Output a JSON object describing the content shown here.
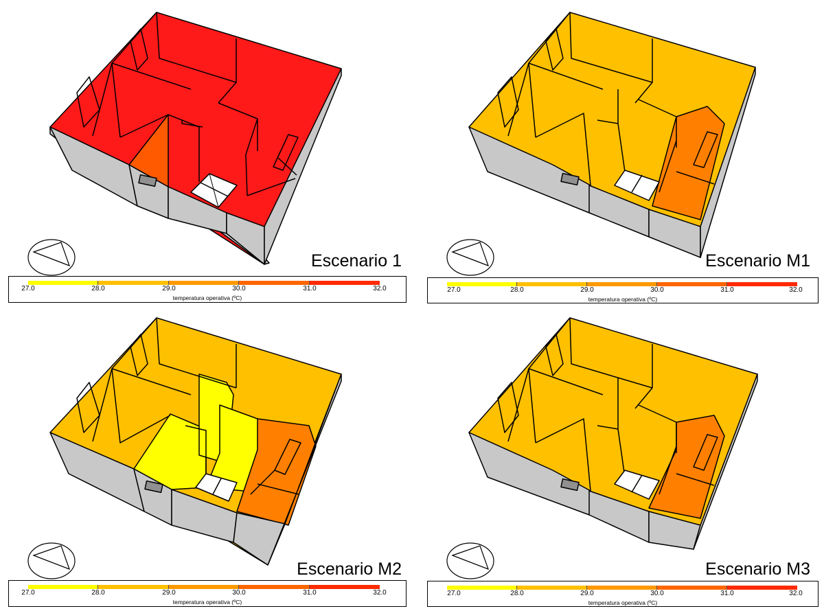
{
  "panels": [
    {
      "id": "p1",
      "title": "Escenario 1"
    },
    {
      "id": "p2",
      "title": "Escenario M1"
    },
    {
      "id": "p3",
      "title": "Escenario M2"
    },
    {
      "id": "p4",
      "title": "Escenario M3"
    }
  ],
  "legend": {
    "label": "temperatura operativa (ºC)",
    "ticks": [
      "27.0",
      "28.0",
      "29.0",
      "30.0",
      "31.0",
      "32.0"
    ],
    "colors": [
      "#FFFF00",
      "#FFC000",
      "#FF9900",
      "#FF6600",
      "#FF2A00"
    ]
  },
  "colors": {
    "exterior_wall": "#C8C8C8",
    "s1_main": "#FF1A1A",
    "s1_orange": "#FF5A00",
    "amber": "#FFC000",
    "amber_light": "#FFCA30",
    "orange": "#FF8000",
    "yellow": "#FFFF00",
    "floor_white": "#FFFFFF"
  }
}
